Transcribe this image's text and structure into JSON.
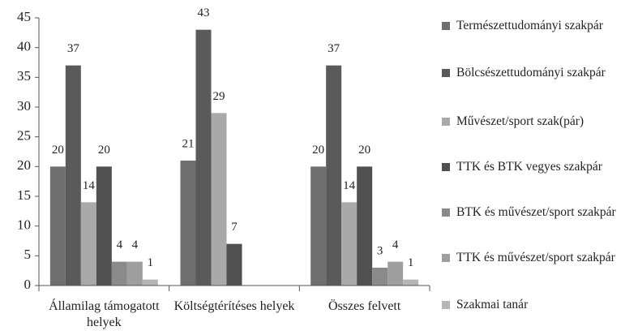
{
  "chart_data": {
    "type": "bar",
    "categories": [
      "Államilag támogatott helyek",
      "Költségtérítéses helyek",
      "Összes felvett"
    ],
    "series": [
      {
        "name": "Természettudományi szakpár",
        "color": "#6f6f6f",
        "values": [
          20,
          21,
          20
        ]
      },
      {
        "name": "Bölcsészettudományi szakpár",
        "color": "#5a5a5a",
        "values": [
          37,
          43,
          37
        ]
      },
      {
        "name": "Művészet/sport szak(pár)",
        "color": "#a9a9a9",
        "values": [
          14,
          29,
          14
        ]
      },
      {
        "name": "TTK és BTK vegyes szakpár",
        "color": "#505050",
        "values": [
          20,
          7,
          20
        ]
      },
      {
        "name": "BTK és művészet/sport szakpár",
        "color": "#8a8a8a",
        "values": [
          4,
          null,
          3
        ]
      },
      {
        "name": "TTK és művészet/sport szakpár",
        "color": "#9e9e9e",
        "values": [
          4,
          null,
          4
        ]
      },
      {
        "name": "Szakmai tanár",
        "color": "#b5b5b5",
        "values": [
          1,
          null,
          1
        ]
      }
    ],
    "ylim": [
      0,
      45
    ],
    "yticks": [
      0,
      5,
      10,
      15,
      20,
      25,
      30,
      35,
      40,
      45
    ],
    "grid": false,
    "legend": "right"
  }
}
